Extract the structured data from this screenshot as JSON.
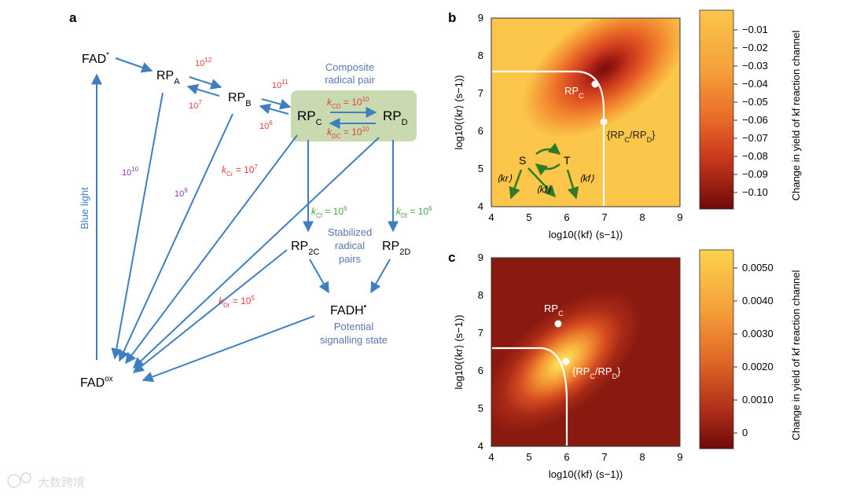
{
  "panel_a": {
    "letter": "a",
    "nodes": {
      "fad_star": "FAD",
      "fad_star_sup": "*",
      "rpa": "RP",
      "rpa_sub": "A",
      "rpb": "RP",
      "rpb_sub": "B",
      "rpc": "RP",
      "rpc_sub": "C",
      "rpd": "RP",
      "rpd_sub": "D",
      "rp2c": "RP",
      "rp2c_sub": "2C",
      "rp2d": "RP",
      "rp2d_sub": "2D",
      "fadh": "FADH",
      "fadh_sup": "•",
      "fadox": "FAD",
      "fadox_sup": "ox"
    },
    "annotations": {
      "composite_line1": "Composite",
      "composite_line2": "radical pair",
      "stabilized_line1": "Stabilized",
      "stabilized_line2": "radical",
      "stabilized_line3": "pairs",
      "potential_line1": "Potential",
      "potential_line2": "signalling state",
      "blue_light": "Blue light"
    },
    "rates": {
      "r_ab": "10",
      "r_ab_exp": "12",
      "r_ba": "10",
      "r_ba_exp": "7",
      "r_bc": "10",
      "r_bc_exp": "11",
      "r_cb": "10",
      "r_cb_exp": "6",
      "k_cd_k": "k",
      "k_cd_sub": "CD",
      "k_cd_val": " = 10",
      "k_cd_exp": "10",
      "k_dc_k": "k",
      "k_dc_sub": "DC",
      "k_dc_val": " = 10",
      "k_dc_exp": "10",
      "r_a_ox": "10",
      "r_a_ox_exp": "10",
      "r_b_ox": "10",
      "r_b_ox_exp": "9",
      "k_cr_k": "k",
      "k_cr_sub": "Cr",
      "k_cr_val": " = 10",
      "k_cr_exp": "7",
      "k_dr_k": "k",
      "k_dr_sub": "Dr",
      "k_dr_val": " = 10",
      "k_dr_exp": "5",
      "k_cf_k": "k",
      "k_cf_sub": "Cf",
      "k_cf_val": " = 10",
      "k_cf_exp": "6",
      "k_df_k": "k",
      "k_df_sub": "Df",
      "k_df_val": " = 10",
      "k_df_exp": "6"
    }
  },
  "panel_b": {
    "letter": "b",
    "x_ticks": [
      "4",
      "5",
      "6",
      "7",
      "8",
      "9"
    ],
    "y_ticks": [
      "4",
      "5",
      "6",
      "7",
      "8",
      "9"
    ],
    "xlabel": "log10(⟨kf⟩ (s−1))",
    "ylabel": "log10(⟨kr⟩ (s−1))",
    "point_rpc": "RP",
    "point_rpc_sub": "C",
    "point_rpcd_a": "{RP",
    "point_rpcd_sub1": "C",
    "point_rpcd_b": "/RP",
    "point_rpcd_sub2": "D",
    "point_rpcd_c": "}",
    "inset_s": "S",
    "inset_t": "T",
    "inset_kr": "⟨kr⟩",
    "inset_kf_mid": "⟨kf⟩",
    "inset_kf_right": "⟨kf⟩",
    "colorbar_ticks": [
      "−0.01",
      "−0.02",
      "−0.03",
      "−0.04",
      "−0.05",
      "−0.06",
      "−0.07",
      "−0.08",
      "−0.09",
      "−0.10"
    ],
    "colorbar_label": "Change in yield of kf reaction channel"
  },
  "panel_c": {
    "letter": "c",
    "x_ticks": [
      "4",
      "5",
      "6",
      "7",
      "8",
      "9"
    ],
    "y_ticks": [
      "4",
      "5",
      "6",
      "7",
      "8",
      "9"
    ],
    "xlabel": "log10(⟨kf⟩ (s−1))",
    "ylabel": "log10(⟨kr⟩ (s−1))",
    "point_rpc": "RP",
    "point_rpc_sub": "C",
    "point_rpcd_a": "{RP",
    "point_rpcd_sub1": "C",
    "point_rpcd_b": "/RP",
    "point_rpcd_sub2": "D",
    "point_rpcd_c": "}",
    "colorbar_ticks": [
      "0.0050",
      "0.0040",
      "0.0030",
      "0.0020",
      "0.0010",
      "0"
    ],
    "colorbar_label": "Change in yield of kf reaction channel"
  },
  "watermark": "大数跨境",
  "colors": {
    "arrow_blue": "#3f7fc1",
    "rate_red": "#e0413a",
    "rate_purple": "#8a3fa8",
    "rate_green": "#4aa34a",
    "annotation_blue": "#5a78b0",
    "composite_box": "#c9d9b0",
    "heat_light": "#fbc64a",
    "heat_dark": "#6e0a0a"
  }
}
